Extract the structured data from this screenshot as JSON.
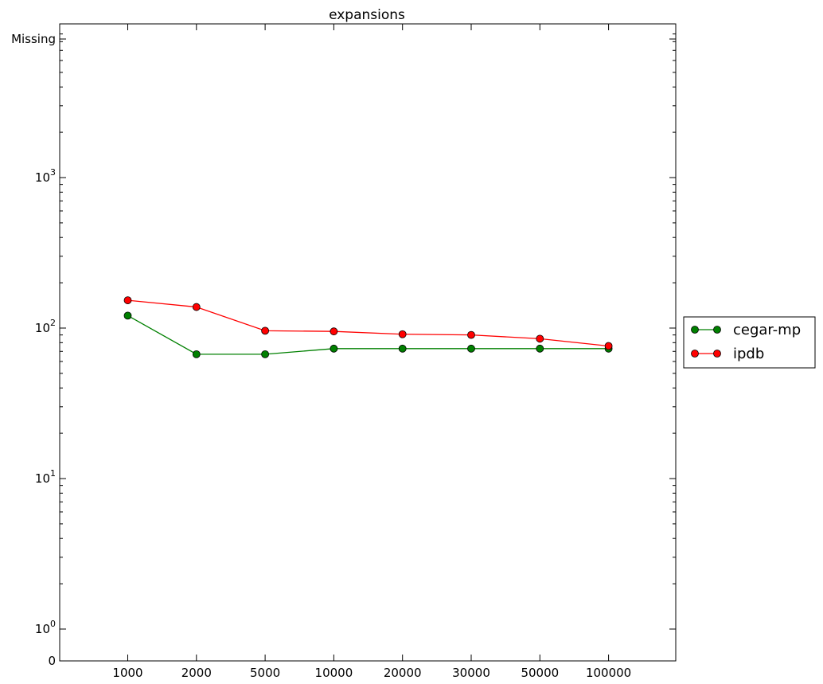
{
  "chart_data": {
    "type": "line",
    "title": "expansions",
    "xlabel": "",
    "ylabel": "",
    "x_scale": "categorical",
    "y_scale": "symlog",
    "categories": [
      "1000",
      "2000",
      "5000",
      "10000",
      "20000",
      "30000",
      "50000",
      "100000"
    ],
    "y_ticks": [
      {
        "value": 0,
        "label": "0"
      },
      {
        "value": 1,
        "label": "10",
        "exp": "0"
      },
      {
        "value": 10,
        "label": "10",
        "exp": "1"
      },
      {
        "value": 100,
        "label": "10",
        "exp": "2"
      },
      {
        "value": 1000,
        "label": "10",
        "exp": "3"
      },
      {
        "value": "missing",
        "label": "Missing"
      }
    ],
    "series": [
      {
        "name": "cegar-mp",
        "color": "#008000",
        "marker": "circle",
        "values": [
          121,
          67,
          67,
          73,
          73,
          73,
          73,
          73
        ]
      },
      {
        "name": "ipdb",
        "color": "#ff0000",
        "marker": "circle",
        "values": [
          153,
          138,
          96,
          95,
          91,
          90,
          85,
          76
        ]
      }
    ],
    "legend_position": "right-outside",
    "grid": false
  }
}
